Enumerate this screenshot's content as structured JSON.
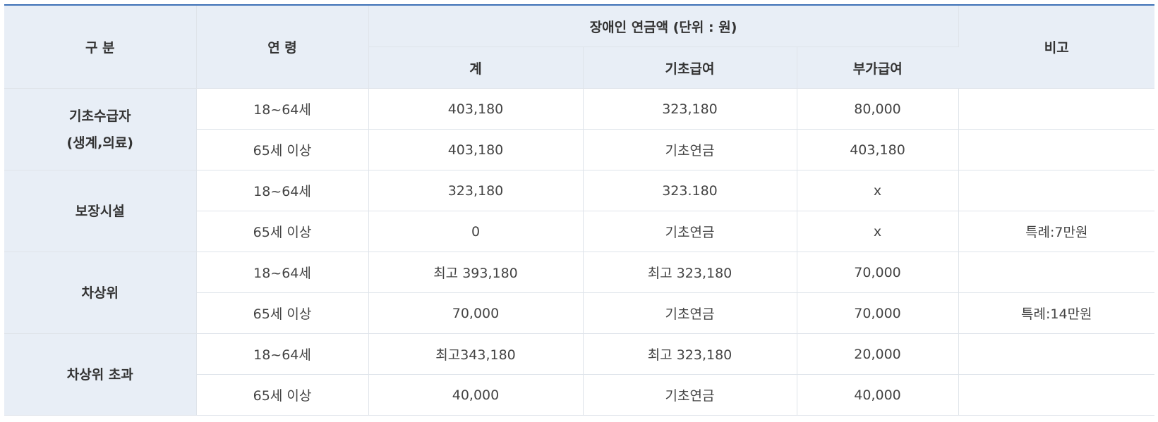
{
  "header": {
    "category": "구 분",
    "age": "연 령",
    "pension_group": "장애인 연금액 (단위 : 원)",
    "total": "계",
    "basic_benefit": "기초급여",
    "additional_benefit": "부가급여",
    "note": "비고"
  },
  "groups": [
    {
      "label_lines": [
        "기초수급자",
        "(생계,의료)"
      ],
      "rows": [
        {
          "age": "18~64세",
          "total": "403,180",
          "basic": "323,180",
          "additional": "80,000",
          "note": ""
        },
        {
          "age": "65세 이상",
          "total": "403,180",
          "basic": "기초연금",
          "additional": "403,180",
          "note": ""
        }
      ]
    },
    {
      "label_lines": [
        "보장시설"
      ],
      "rows": [
        {
          "age": "18~64세",
          "total": "323,180",
          "basic": "323.180",
          "additional": "x",
          "note": ""
        },
        {
          "age": "65세 이상",
          "total": "0",
          "basic": "기초연금",
          "additional": "x",
          "note": "특례:7만원"
        }
      ]
    },
    {
      "label_lines": [
        "차상위"
      ],
      "rows": [
        {
          "age": "18~64세",
          "total": "최고 393,180",
          "basic": "최고 323,180",
          "additional": "70,000",
          "note": ""
        },
        {
          "age": "65세 이상",
          "total": "70,000",
          "basic": "기초연금",
          "additional": "70,000",
          "note": "특례:14만원"
        }
      ]
    },
    {
      "label_lines": [
        "차상위 초과"
      ],
      "rows": [
        {
          "age": "18~64세",
          "total": "최고343,180",
          "basic": "최고 323,180",
          "additional": "20,000",
          "note": ""
        },
        {
          "age": "65세 이상",
          "total": "40,000",
          "basic": "기초연금",
          "additional": "40,000",
          "note": ""
        }
      ]
    }
  ]
}
